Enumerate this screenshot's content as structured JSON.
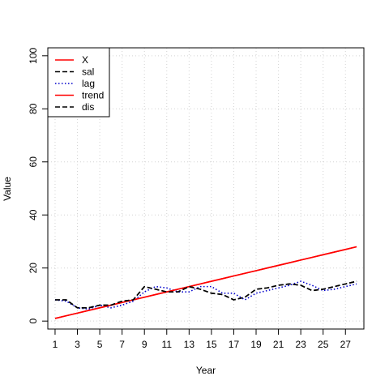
{
  "chart_data": {
    "type": "line",
    "xlabel": "Year",
    "ylabel": "Value",
    "xlim": [
      1,
      28
    ],
    "ylim": [
      0,
      100
    ],
    "x_ticks": [
      1,
      3,
      5,
      7,
      9,
      11,
      13,
      15,
      17,
      19,
      21,
      23,
      25,
      27
    ],
    "y_ticks": [
      0,
      20,
      40,
      60,
      80,
      100
    ],
    "grid": true,
    "legend_position": "top-left",
    "x": [
      1,
      2,
      3,
      4,
      5,
      6,
      7,
      8,
      9,
      10,
      11,
      12,
      13,
      14,
      15,
      16,
      17,
      18,
      19,
      20,
      21,
      22,
      23,
      24,
      25,
      26,
      27,
      28
    ],
    "series": [
      {
        "name": "X",
        "color": "#ff0000",
        "dash": "solid",
        "values": [
          1,
          2,
          3,
          4,
          5,
          6,
          7,
          8,
          9,
          10,
          11,
          12,
          13,
          14,
          15,
          16,
          17,
          18,
          19,
          20,
          21,
          22,
          23,
          24,
          25,
          26,
          27,
          28
        ]
      },
      {
        "name": "sal",
        "color": "#000000",
        "dash": "dashed",
        "values": [
          8,
          8,
          5,
          5,
          6,
          6,
          7.5,
          8,
          13,
          12,
          11,
          11,
          13,
          12,
          10.5,
          10,
          8,
          9,
          12,
          12.5,
          13.5,
          14,
          13.5,
          11.5,
          12,
          13,
          14,
          15
        ]
      },
      {
        "name": "lag",
        "color": "#0000cc",
        "dash": "dotted",
        "values": [
          8,
          7.5,
          5,
          4.5,
          6,
          5,
          6,
          7.5,
          11,
          13,
          12.5,
          11,
          11,
          13,
          13,
          10.5,
          10.5,
          8,
          10.5,
          11.5,
          12.5,
          13.5,
          15,
          13.5,
          11.5,
          12,
          13,
          14
        ]
      },
      {
        "name": "trend",
        "color": "#ff0000",
        "dash": "solid",
        "values": [
          1,
          2,
          3,
          4,
          5,
          6,
          7,
          8,
          9,
          10,
          11,
          12,
          13,
          14,
          15,
          16,
          17,
          18,
          19,
          20,
          21,
          22,
          23,
          24,
          25,
          26,
          27,
          28
        ]
      },
      {
        "name": "dis",
        "color": "#000000",
        "dash": "dashed",
        "values": [
          8,
          8,
          5,
          5,
          6,
          6,
          7.5,
          8,
          13,
          12,
          11,
          11,
          13,
          12,
          10.5,
          10,
          8,
          9,
          12,
          12.5,
          13.5,
          14,
          13.5,
          11.5,
          12,
          13,
          14,
          15
        ]
      }
    ]
  }
}
